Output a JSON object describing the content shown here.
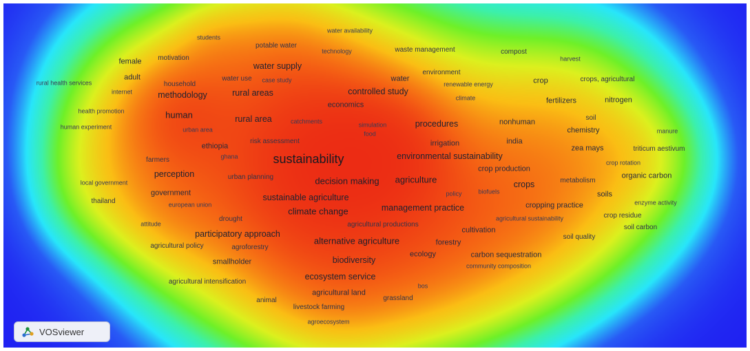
{
  "brand": {
    "logo_text": "VOSviewer"
  },
  "terms": [
    {
      "id": "water-availability",
      "label": "water availability",
      "cls": "s8"
    },
    {
      "id": "students",
      "label": "students",
      "cls": "s8"
    },
    {
      "id": "potable-water",
      "label": "potable water",
      "cls": "s9"
    },
    {
      "id": "technology",
      "label": "technology",
      "cls": "s8"
    },
    {
      "id": "waste-management",
      "label": "waste management",
      "cls": "s9"
    },
    {
      "id": "compost",
      "label": "compost",
      "cls": "s9"
    },
    {
      "id": "harvest",
      "label": "harvest",
      "cls": "s8"
    },
    {
      "id": "female",
      "label": "female",
      "cls": "s10"
    },
    {
      "id": "motivation",
      "label": "motivation",
      "cls": "s9"
    },
    {
      "id": "water-supply",
      "label": "water supply",
      "cls": "s12"
    },
    {
      "id": "adult",
      "label": "adult",
      "cls": "s10"
    },
    {
      "id": "water-use",
      "label": "water use",
      "cls": "s9"
    },
    {
      "id": "case-study",
      "label": "case study",
      "cls": "s8"
    },
    {
      "id": "environment",
      "label": "environment",
      "cls": "s9"
    },
    {
      "id": "water",
      "label": "water",
      "cls": "s10"
    },
    {
      "id": "rural-health-services",
      "label": "rural health services",
      "cls": "s8"
    },
    {
      "id": "household",
      "label": "household",
      "cls": "s9"
    },
    {
      "id": "renewable-energy",
      "label": "renewable energy",
      "cls": "s8"
    },
    {
      "id": "crop",
      "label": "crop",
      "cls": "s10"
    },
    {
      "id": "crops-agricultural",
      "label": "crops, agricultural",
      "cls": "s9"
    },
    {
      "id": "internet",
      "label": "internet",
      "cls": "s8"
    },
    {
      "id": "methodology",
      "label": "methodology",
      "cls": "s12"
    },
    {
      "id": "rural-areas",
      "label": "rural areas",
      "cls": "s12"
    },
    {
      "id": "controlled-study",
      "label": "controlled study",
      "cls": "s12"
    },
    {
      "id": "climate",
      "label": "climate",
      "cls": "s8"
    },
    {
      "id": "fertilizers",
      "label": "fertilizers",
      "cls": "s10"
    },
    {
      "id": "nitrogen",
      "label": "nitrogen",
      "cls": "s10"
    },
    {
      "id": "economics",
      "label": "economics",
      "cls": "s10"
    },
    {
      "id": "health-promotion",
      "label": "health promotion",
      "cls": "s8"
    },
    {
      "id": "human",
      "label": "human",
      "cls": "s13"
    },
    {
      "id": "rural-area",
      "label": "rural area",
      "cls": "s12"
    },
    {
      "id": "catchments",
      "label": "catchments",
      "cls": "s8"
    },
    {
      "id": "soil",
      "label": "soil",
      "cls": "s9"
    },
    {
      "id": "simulation",
      "label": "simulation",
      "cls": "s8"
    },
    {
      "id": "procedures",
      "label": "procedures",
      "cls": "s12"
    },
    {
      "id": "nonhuman",
      "label": "nonhuman",
      "cls": "s10"
    },
    {
      "id": "human-experiment",
      "label": "human experiment",
      "cls": "s8"
    },
    {
      "id": "urban-area",
      "label": "urban area",
      "cls": "s8"
    },
    {
      "id": "chemistry",
      "label": "chemistry",
      "cls": "s10"
    },
    {
      "id": "manure",
      "label": "manure",
      "cls": "s8"
    },
    {
      "id": "food",
      "label": "food",
      "cls": "s8"
    },
    {
      "id": "ethiopia",
      "label": "ethiopia",
      "cls": "s10"
    },
    {
      "id": "risk-assessment",
      "label": "risk assessment",
      "cls": "s9"
    },
    {
      "id": "irrigation",
      "label": "irrigation",
      "cls": "s10"
    },
    {
      "id": "india",
      "label": "india",
      "cls": "s10"
    },
    {
      "id": "zea-mays",
      "label": "zea mays",
      "cls": "s10"
    },
    {
      "id": "triticum-aestivum",
      "label": "triticum aestivum",
      "cls": "s9"
    },
    {
      "id": "ghana",
      "label": "ghana",
      "cls": "s8"
    },
    {
      "id": "farmers",
      "label": "farmers",
      "cls": "s9"
    },
    {
      "id": "sustainability",
      "label": "sustainability",
      "cls": "s18"
    },
    {
      "id": "environmental-sustainability",
      "label": "environmental sustainability",
      "cls": "s12"
    },
    {
      "id": "crop-rotation",
      "label": "crop rotation",
      "cls": "s8"
    },
    {
      "id": "crop-production",
      "label": "crop production",
      "cls": "s10"
    },
    {
      "id": "perception",
      "label": "perception",
      "cls": "s12"
    },
    {
      "id": "urban-planning",
      "label": "urban planning",
      "cls": "s9"
    },
    {
      "id": "decision-making",
      "label": "decision making",
      "cls": "s13"
    },
    {
      "id": "agriculture",
      "label": "agriculture",
      "cls": "s13"
    },
    {
      "id": "organic-carbon",
      "label": "organic carbon",
      "cls": "s10"
    },
    {
      "id": "local-government",
      "label": "local government",
      "cls": "s8"
    },
    {
      "id": "metabolism",
      "label": "metabolism",
      "cls": "s9"
    },
    {
      "id": "crops",
      "label": "crops",
      "cls": "s12"
    },
    {
      "id": "government",
      "label": "government",
      "cls": "s10"
    },
    {
      "id": "policy",
      "label": "policy",
      "cls": "s8"
    },
    {
      "id": "biofuels",
      "label": "biofuels",
      "cls": "s8"
    },
    {
      "id": "soils",
      "label": "soils",
      "cls": "s10"
    },
    {
      "id": "sustainable-agriculture",
      "label": "sustainable agriculture",
      "cls": "s12"
    },
    {
      "id": "thailand",
      "label": "thailand",
      "cls": "s9"
    },
    {
      "id": "european-union",
      "label": "european union",
      "cls": "s8"
    },
    {
      "id": "enzyme-activity",
      "label": "enzyme activity",
      "cls": "s8"
    },
    {
      "id": "cropping-practice",
      "label": "cropping practice",
      "cls": "s10"
    },
    {
      "id": "management-practice",
      "label": "management practice",
      "cls": "s12"
    },
    {
      "id": "climate-change",
      "label": "climate change",
      "cls": "s13"
    },
    {
      "id": "crop-residue",
      "label": "crop residue",
      "cls": "s9"
    },
    {
      "id": "drought",
      "label": "drought",
      "cls": "s9"
    },
    {
      "id": "agricultural-sustainability",
      "label": "agricultural sustainability",
      "cls": "s8"
    },
    {
      "id": "attitude",
      "label": "attitude",
      "cls": "s8"
    },
    {
      "id": "agricultural-productions",
      "label": "agricultural productions",
      "cls": "s9"
    },
    {
      "id": "soil-carbon",
      "label": "soil carbon",
      "cls": "s9"
    },
    {
      "id": "cultivation",
      "label": "cultivation",
      "cls": "s10"
    },
    {
      "id": "participatory-approach",
      "label": "participatory approach",
      "cls": "s12"
    },
    {
      "id": "soil-quality",
      "label": "soil quality",
      "cls": "s9"
    },
    {
      "id": "alternative-agriculture",
      "label": "alternative agriculture",
      "cls": "s13"
    },
    {
      "id": "forestry",
      "label": "forestry",
      "cls": "s10"
    },
    {
      "id": "agricultural-policy",
      "label": "agricultural policy",
      "cls": "s9"
    },
    {
      "id": "agroforestry",
      "label": "agroforestry",
      "cls": "s9"
    },
    {
      "id": "ecology",
      "label": "ecology",
      "cls": "s10"
    },
    {
      "id": "carbon-sequestration",
      "label": "carbon sequestration",
      "cls": "s10"
    },
    {
      "id": "smallholder",
      "label": "smallholder",
      "cls": "s10"
    },
    {
      "id": "biodiversity",
      "label": "biodiversity",
      "cls": "s12"
    },
    {
      "id": "community-composition",
      "label": "community composition",
      "cls": "s8"
    },
    {
      "id": "agricultural-intensification",
      "label": "agricultural intensification",
      "cls": "s9"
    },
    {
      "id": "ecosystem-service",
      "label": "ecosystem service",
      "cls": "s12"
    },
    {
      "id": "bos",
      "label": "bos",
      "cls": "s8"
    },
    {
      "id": "agricultural-land",
      "label": "agricultural land",
      "cls": "s10"
    },
    {
      "id": "animal",
      "label": "animal",
      "cls": "s9"
    },
    {
      "id": "grassland",
      "label": "grassland",
      "cls": "s9"
    },
    {
      "id": "livestock-farming",
      "label": "livestock farming",
      "cls": "s9"
    },
    {
      "id": "agroecosystem",
      "label": "agroecosystem",
      "cls": "s8"
    }
  ]
}
